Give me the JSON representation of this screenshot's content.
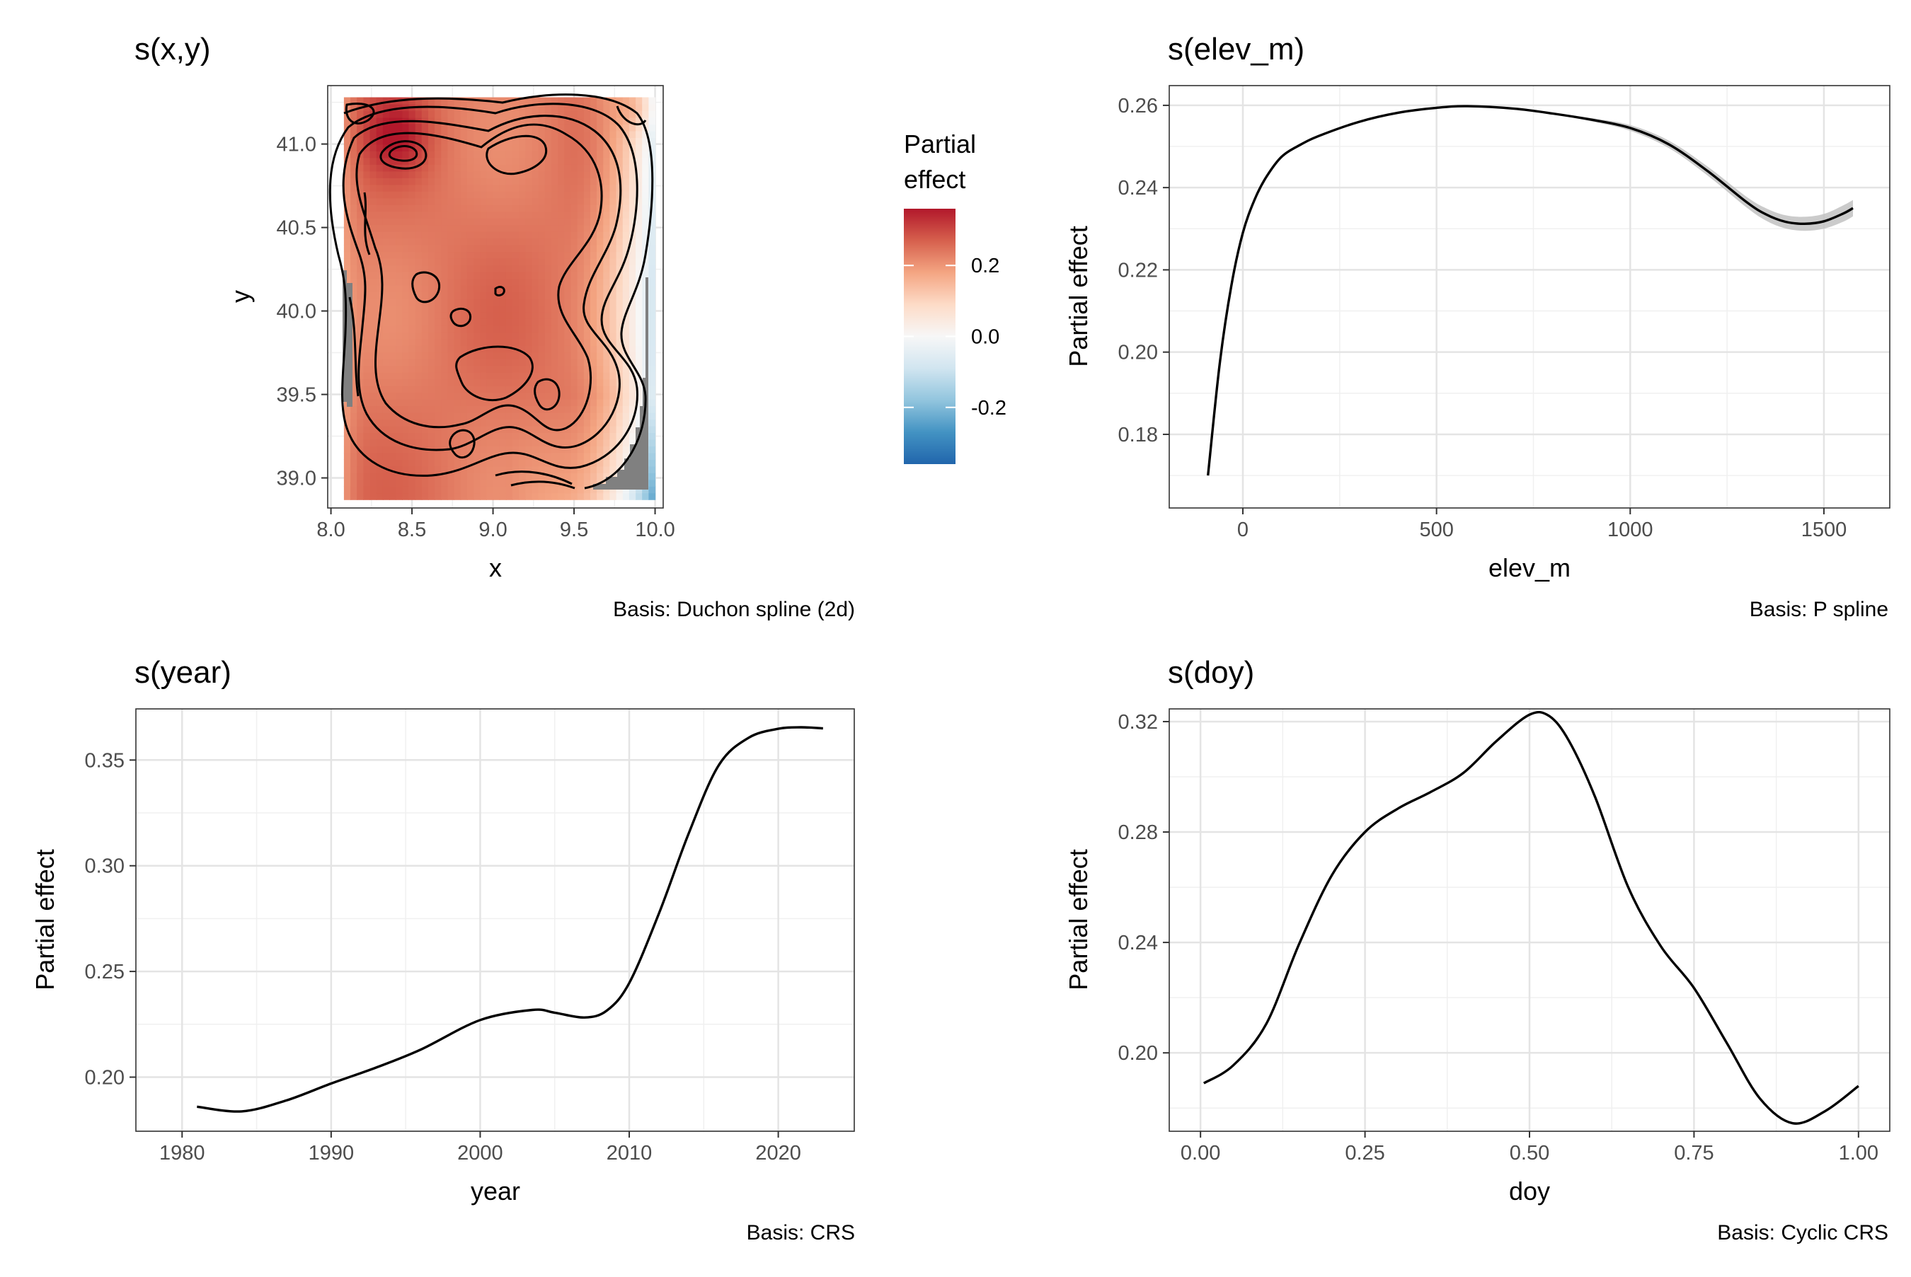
{
  "chart_data": [
    {
      "type": "heatmap",
      "title": "s(x,y)",
      "xlabel": "x",
      "ylabel": "y",
      "xlim": [
        7.98,
        10.05
      ],
      "ylim": [
        38.82,
        41.35
      ],
      "x_ticks": [
        "8.0",
        "8.5",
        "9.0",
        "9.5",
        "10.0"
      ],
      "y_ticks": [
        "39.0",
        "39.5",
        "40.0",
        "40.5",
        "41.0"
      ],
      "x_tick_values": [
        8.0,
        8.5,
        9.0,
        9.5,
        10.0
      ],
      "y_tick_values": [
        39.0,
        39.5,
        40.0,
        40.5,
        41.0
      ],
      "legend": {
        "title_line1": "Partial",
        "title_line2": "effect",
        "ticks": [
          "0.2",
          "0.0",
          "-0.2"
        ],
        "tick_values": [
          0.2,
          0.0,
          -0.2
        ],
        "range": [
          -0.36,
          0.36
        ],
        "placement": "right"
      },
      "colorscale": [
        "#2166ac",
        "#4393c3",
        "#92c5de",
        "#d1e5f0",
        "#f7f7f7",
        "#fddbc7",
        "#f4a582",
        "#d6604d",
        "#b2182b"
      ],
      "caption": "Basis: Duchon spline (2d)"
    },
    {
      "type": "line",
      "title": "s(elev_m)",
      "xlabel": "elev_m",
      "ylabel": "Partial effect",
      "xlim": [
        -190,
        1670
      ],
      "ylim": [
        0.1621,
        0.2648
      ],
      "x_ticks": [
        "0",
        "500",
        "1000",
        "1500"
      ],
      "y_ticks": [
        "0.18",
        "0.20",
        "0.22",
        "0.24",
        "0.26"
      ],
      "x_tick_values": [
        0,
        500,
        1000,
        1500
      ],
      "y_tick_values": [
        0.18,
        0.2,
        0.22,
        0.24,
        0.26
      ],
      "x": [
        -90,
        -60,
        -30,
        0,
        30,
        60,
        100,
        150,
        200,
        300,
        400,
        500,
        580,
        700,
        800,
        900,
        1000,
        1100,
        1200,
        1300,
        1350,
        1400,
        1450,
        1500,
        1550,
        1575
      ],
      "y": [
        0.17,
        0.197,
        0.216,
        0.229,
        0.237,
        0.2425,
        0.2475,
        0.2505,
        0.2527,
        0.256,
        0.2582,
        0.2594,
        0.2598,
        0.2592,
        0.258,
        0.2565,
        0.2545,
        0.2505,
        0.244,
        0.2365,
        0.2335,
        0.2317,
        0.2312,
        0.2318,
        0.2337,
        0.235
      ],
      "ribbon_halfwidth": [
        0.0002,
        0.0002,
        0.0002,
        0.0002,
        0.0002,
        0.0002,
        0.0002,
        0.0002,
        0.0002,
        0.0002,
        0.0002,
        0.0002,
        0.0002,
        0.0002,
        0.0002,
        0.0004,
        0.0007,
        0.0009,
        0.0011,
        0.0013,
        0.0015,
        0.0016,
        0.0017,
        0.0018,
        0.002,
        0.002
      ],
      "caption": "Basis: P spline"
    },
    {
      "type": "line",
      "title": "s(year)",
      "xlabel": "year",
      "ylabel": "Partial effect",
      "xlim": [
        1976.9,
        2025.1
      ],
      "ylim": [
        0.1744,
        0.3742
      ],
      "x_ticks": [
        "1980",
        "1990",
        "2000",
        "2010",
        "2020"
      ],
      "y_ticks": [
        "0.20",
        "0.25",
        "0.30",
        "0.35"
      ],
      "x_tick_values": [
        1980,
        1990,
        2000,
        2010,
        2020
      ],
      "y_tick_values": [
        0.2,
        0.25,
        0.3,
        0.35
      ],
      "x": [
        1981,
        1984,
        1987,
        1990,
        1993,
        1996,
        2000,
        2003.5,
        2005,
        2007,
        2008.5,
        2010,
        2012,
        2014,
        2016,
        2018,
        2020,
        2021.5,
        2023
      ],
      "y": [
        0.186,
        0.1838,
        0.189,
        0.197,
        0.2045,
        0.213,
        0.227,
        0.2318,
        0.2305,
        0.2282,
        0.2315,
        0.2445,
        0.2775,
        0.3155,
        0.3475,
        0.3605,
        0.3648,
        0.3655,
        0.365
      ],
      "caption": "Basis: CRS"
    },
    {
      "type": "line",
      "title": "s(doy)",
      "xlabel": "doy",
      "ylabel": "Partial effect",
      "xlim": [
        -0.0475,
        1.0475
      ],
      "ylim": [
        0.1716,
        0.3246
      ],
      "x_ticks": [
        "0.00",
        "0.25",
        "0.50",
        "0.75",
        "1.00"
      ],
      "y_ticks": [
        "0.20",
        "0.24",
        "0.28",
        "0.32"
      ],
      "x_tick_values": [
        0,
        0.25,
        0.5,
        0.75,
        1.0
      ],
      "y_tick_values": [
        0.2,
        0.24,
        0.28,
        0.32
      ],
      "x": [
        0.005,
        0.05,
        0.1,
        0.15,
        0.2,
        0.25,
        0.3,
        0.35,
        0.4,
        0.45,
        0.5,
        0.53,
        0.56,
        0.6,
        0.65,
        0.7,
        0.75,
        0.8,
        0.85,
        0.9,
        0.95,
        1.0
      ],
      "y": [
        0.189,
        0.1955,
        0.2105,
        0.2395,
        0.2645,
        0.28,
        0.2885,
        0.2945,
        0.3015,
        0.313,
        0.3225,
        0.322,
        0.313,
        0.2925,
        0.26,
        0.2385,
        0.2235,
        0.2035,
        0.1835,
        0.1745,
        0.179,
        0.188
      ],
      "caption": "Basis: Cyclic CRS"
    }
  ]
}
